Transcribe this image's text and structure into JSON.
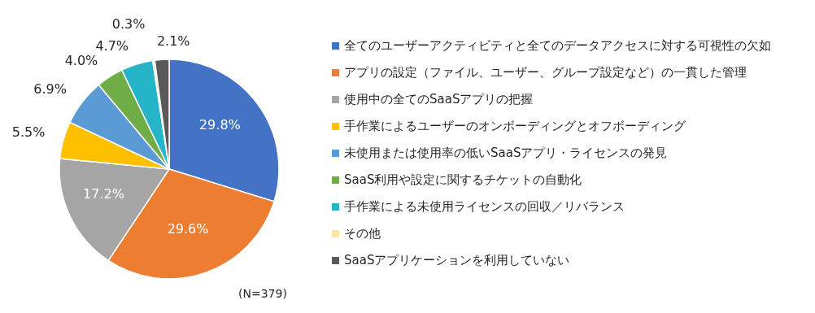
{
  "chart_data": {
    "type": "pie",
    "categories": [
      "全てのユーザーアクティビティと全てのデータアクセスに対する可視性の欠如",
      "アプリの設定（ファイル、ユーザー、グループ設定など）の一貫した管理",
      "使用中の全てのSaaSアプリの把握",
      "手作業によるユーザーのオンボーディングとオフボーディング",
      "未使用または使用率の低いSaaSアプリ・ライセンスの発見",
      "SaaS利用や設定に関するチケットの自動化",
      "手作業による未使用ライセンスの回収／リバランス",
      "その他",
      "SaaSアプリケーションを利用していない"
    ],
    "values": [
      29.8,
      29.6,
      17.2,
      5.5,
      6.9,
      4.0,
      4.7,
      0.3,
      2.1
    ],
    "value_labels": [
      "29.8%",
      "29.6%",
      "17.2%",
      "5.5%",
      "6.9%",
      "4.0%",
      "4.7%",
      "0.3%",
      "2.1%"
    ],
    "colors": [
      "#4472c4",
      "#ed7d31",
      "#a5a5a5",
      "#ffc000",
      "#5b9bd5",
      "#70ad47",
      "#26b5c8",
      "#ffe699",
      "#595959"
    ],
    "legend": "right",
    "annotations": [
      "(N=379)"
    ]
  }
}
